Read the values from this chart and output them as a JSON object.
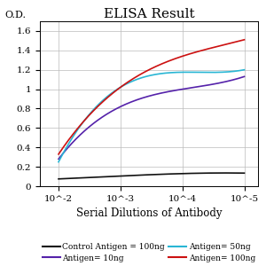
{
  "title": "ELISA Result",
  "ylabel": "O.D.",
  "xlabel": "Serial Dilutions of Antibody",
  "x_ticks": [
    0.01,
    0.001,
    0.0001,
    1e-05
  ],
  "x_labels": [
    "10^-2",
    "10^-3",
    "10^-4",
    "10^-5"
  ],
  "xlim_left": 0.02,
  "xlim_right": 6e-06,
  "ylim": [
    0,
    1.7
  ],
  "yticks": [
    0,
    0.2,
    0.4,
    0.6,
    0.8,
    1.0,
    1.2,
    1.4,
    1.6
  ],
  "series": [
    {
      "label": "Control Antigen = 100ng",
      "color": "#111111",
      "y_values": [
        0.135,
        0.13,
        0.105,
        0.075
      ]
    },
    {
      "label": "Antigen= 10ng",
      "color": "#5522aa",
      "y_values": [
        1.13,
        1.0,
        0.82,
        0.28
      ]
    },
    {
      "label": "Antigen= 50ng",
      "color": "#29b6d4",
      "y_values": [
        1.2,
        1.175,
        1.02,
        0.25
      ]
    },
    {
      "label": "Antigen= 100ng",
      "color": "#cc1111",
      "y_values": [
        1.51,
        1.34,
        1.02,
        0.33
      ]
    }
  ],
  "title_fontsize": 11,
  "label_fontsize": 8,
  "tick_fontsize": 7.5,
  "legend_fontsize": 6.5,
  "bg_color": "#ffffff",
  "grid_color": "#bbbbbb"
}
